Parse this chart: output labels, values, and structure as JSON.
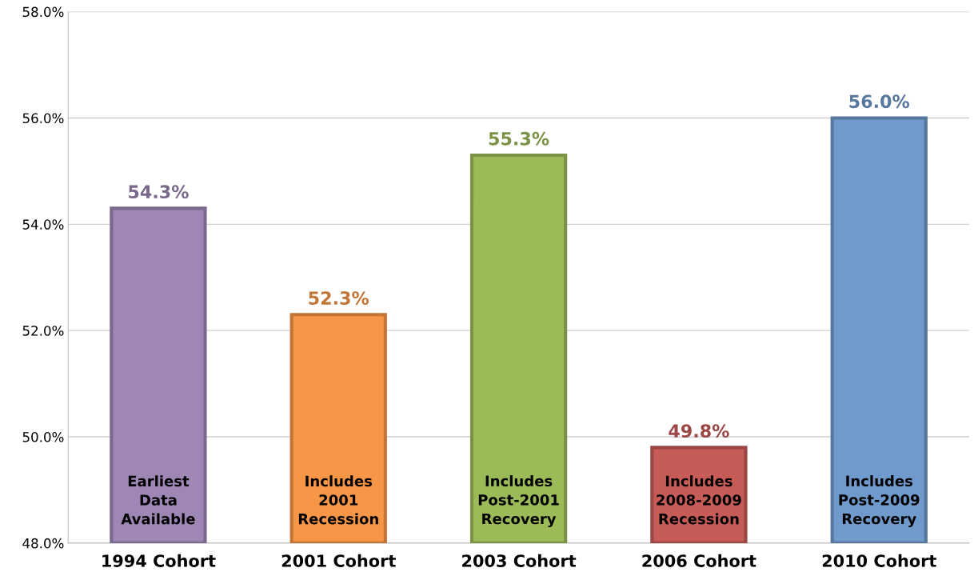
{
  "chart_data": {
    "type": "bar",
    "categories": [
      "1994 Cohort",
      "2001 Cohort",
      "2003 Cohort",
      "2006 Cohort",
      "2010 Cohort"
    ],
    "values": [
      54.3,
      52.3,
      55.3,
      49.8,
      56.0
    ],
    "value_labels": [
      "54.3%",
      "52.3%",
      "55.3%",
      "49.8%",
      "56.0%"
    ],
    "colors": [
      "#9e87b5",
      "#f79646",
      "#9bbb59",
      "#c65b58",
      "#7099cc"
    ],
    "ylim": [
      48,
      58
    ],
    "yticks": [
      {
        "value": 48,
        "label": "48.0%"
      },
      {
        "value": 50,
        "label": "50.0%"
      },
      {
        "value": 52,
        "label": "52.0%"
      },
      {
        "value": 54,
        "label": "54.0%"
      },
      {
        "value": 56,
        "label": "56.0%"
      },
      {
        "value": 58,
        "label": "58.0%"
      }
    ],
    "grid": "y",
    "annotations": [
      "Earliest\nData\nAvailable",
      "Includes\n2001\nRecession",
      "Includes\nPost-2001\nRecovery",
      "Includes\n2008-2009\nRecession",
      "Includes\nPost-2009\nRecovery"
    ]
  }
}
